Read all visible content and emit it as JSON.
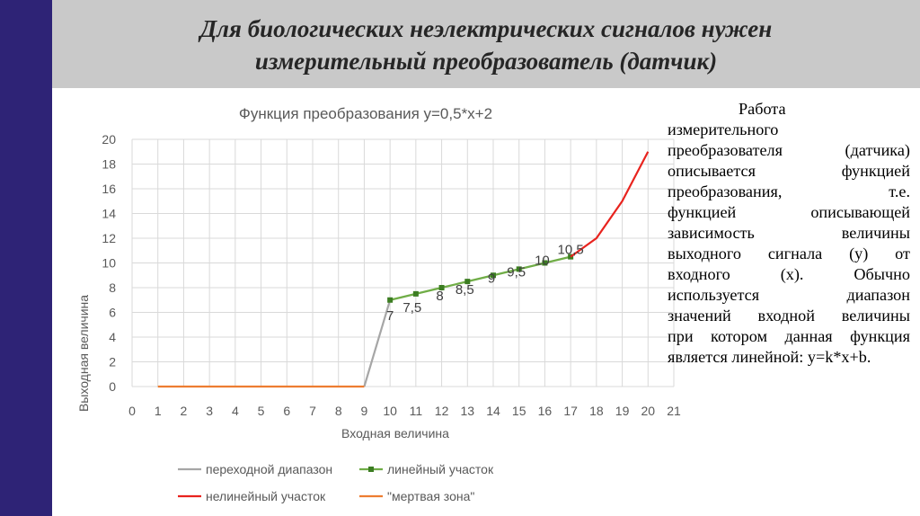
{
  "slide": {
    "title_line1": "Для биологических неэлектрических сигналов нужен",
    "title_line2": "измерительный преобразователь (датчик)",
    "description_lines": [
      "Работа",
      "измерительного",
      "преобразователя (датчика)",
      "описывается функцией",
      "преобразования, т.е.",
      "функцией описывающей",
      "зависимость величины",
      "выходного сигнала (y) от",
      "входного (x). Обычно",
      "используется диапазон",
      "значений входной величины",
      "при котором данная функция",
      "является линейной: y=k*x+b."
    ],
    "colors": {
      "accent_bar": "#2e2376",
      "header_bg": "#c9c9c9"
    }
  },
  "chart_data": {
    "type": "line",
    "title": "Функция преобразования y=0,5*x+2",
    "xlabel": "Входная величина",
    "ylabel": "Выходная величина",
    "xlim": [
      0,
      21
    ],
    "ylim": [
      0,
      20
    ],
    "x_ticks": [
      0,
      1,
      2,
      3,
      4,
      5,
      6,
      7,
      8,
      9,
      10,
      11,
      12,
      13,
      14,
      15,
      16,
      17,
      18,
      19,
      20,
      21
    ],
    "y_ticks": [
      0,
      2,
      4,
      6,
      8,
      10,
      12,
      14,
      16,
      18,
      20
    ],
    "grid": true,
    "legend_position": "bottom",
    "series": [
      {
        "name": "переходной диапазон",
        "color": "#a6a6a6",
        "marker": false,
        "x": [
          9,
          10
        ],
        "y": [
          0,
          7
        ]
      },
      {
        "name": "линейный участок",
        "color": "#70ad47",
        "marker": true,
        "x": [
          10,
          11,
          12,
          13,
          14,
          15,
          16,
          17
        ],
        "y": [
          7,
          7.5,
          8,
          8.5,
          9,
          9.5,
          10,
          10.5
        ],
        "data_labels": [
          "7",
          "7,5",
          "8",
          "8,5",
          "9",
          "9,5",
          "10",
          "10,5"
        ]
      },
      {
        "name": "нелинейный участок",
        "color": "#e8231e",
        "marker": false,
        "x": [
          17,
          18,
          19,
          20
        ],
        "y": [
          10.5,
          12,
          15,
          19
        ]
      },
      {
        "name": "\"мертвая зона\"",
        "color": "#ed7d31",
        "marker": false,
        "x": [
          1,
          2,
          3,
          4,
          5,
          6,
          7,
          8,
          9
        ],
        "y": [
          0,
          0,
          0,
          0,
          0,
          0,
          0,
          0,
          0
        ]
      }
    ]
  }
}
